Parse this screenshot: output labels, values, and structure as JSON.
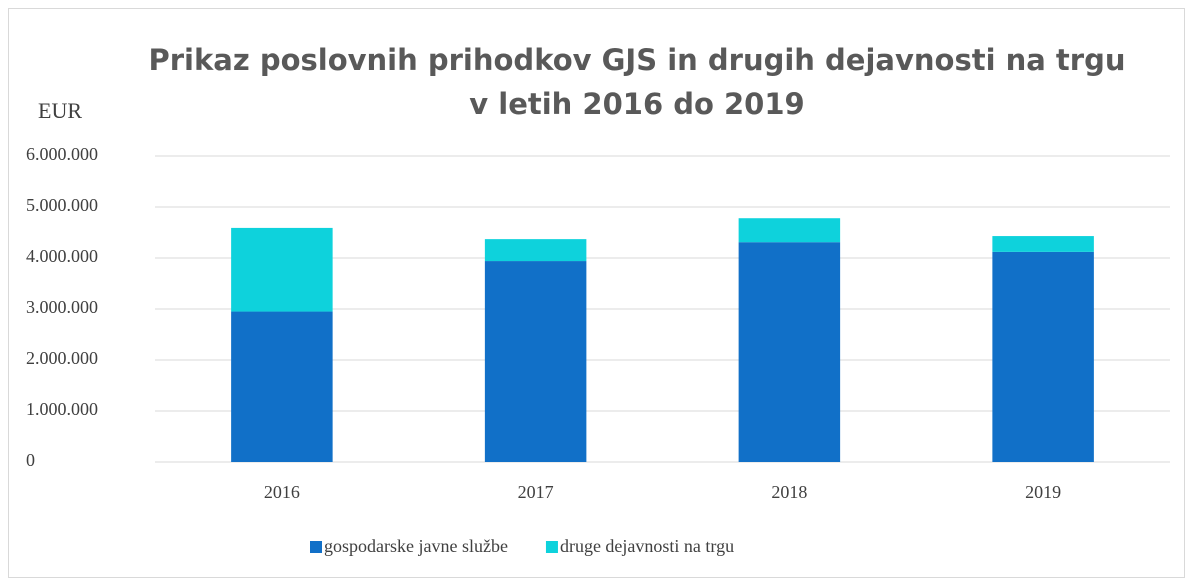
{
  "chart_data": {
    "type": "stacked_bar",
    "title": "Prikaz poslovnih prihodkov GJS in drugih dejavnosti na trgu v letih 2016 do 2019",
    "y_label": "EUR",
    "categories": [
      "2016",
      "2017",
      "2018",
      "2019"
    ],
    "series": [
      {
        "name": "gospodarske javne službe",
        "color": "#1170c8",
        "values": [
          2950000,
          3940000,
          4310000,
          4120000
        ]
      },
      {
        "name": "druge dejavnosti na trgu",
        "color": "#0ed2dc",
        "values": [
          1640000,
          430000,
          470000,
          310000
        ]
      }
    ],
    "ylim": [
      0,
      6000000
    ],
    "yticks": [
      0,
      {
        "value": 1000000,
        "label": "1.000.000"
      },
      {
        "value": 2000000,
        "label": "2.000.000"
      },
      {
        "value": 3000000,
        "label": "3.000.000"
      },
      {
        "value": 4000000,
        "label": "4.000.000"
      },
      {
        "value": 5000000,
        "label": "5.000.000"
      },
      {
        "value": 6000000,
        "label": "6.000.000"
      }
    ],
    "grid": true,
    "legend": "bottom"
  }
}
